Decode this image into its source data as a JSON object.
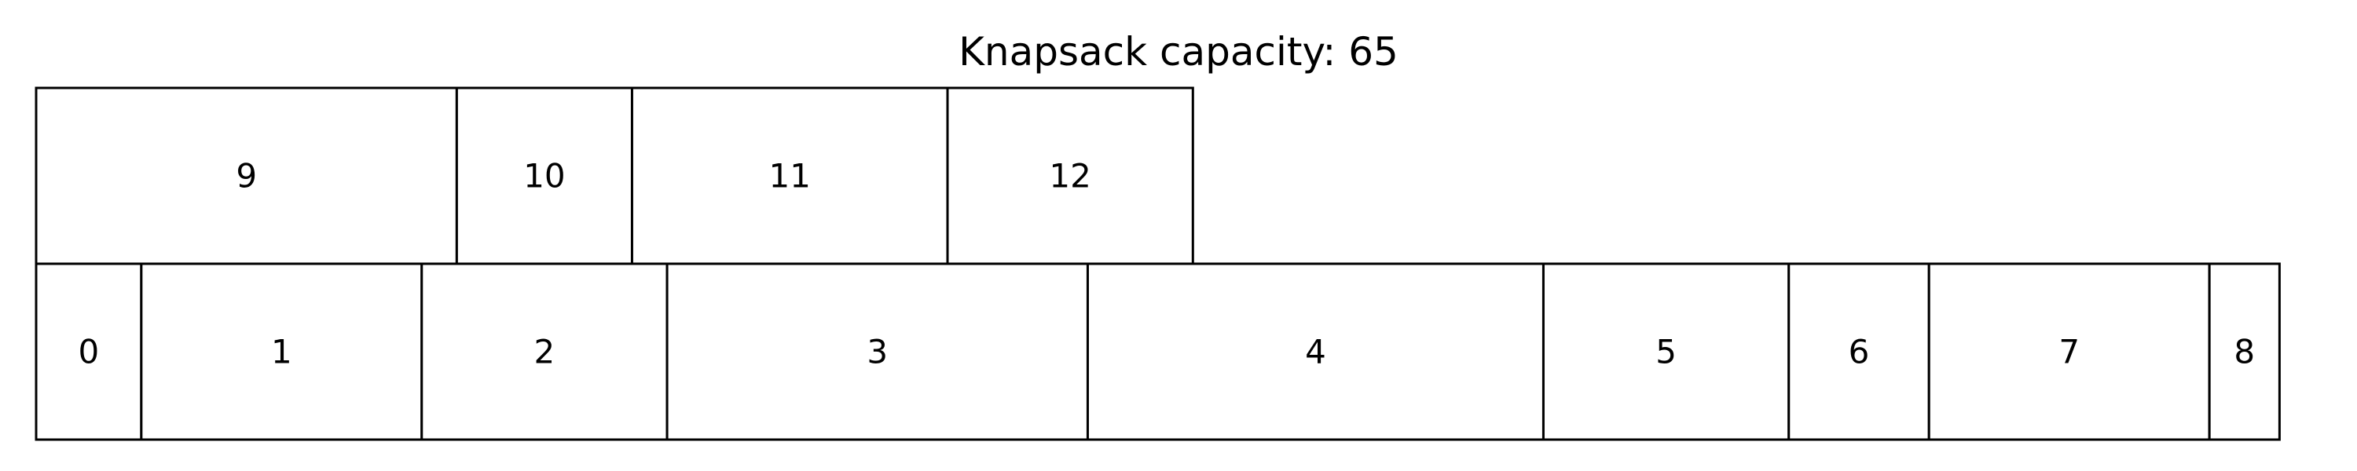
{
  "title": "Knapsack capacity: 65",
  "top_row": [
    {
      "label": "9",
      "size": 12
    },
    {
      "label": "10",
      "size": 5
    },
    {
      "label": "11",
      "size": 9
    },
    {
      "label": "12",
      "size": 7
    }
  ],
  "bottom_row": [
    {
      "label": "0",
      "size": 3
    },
    {
      "label": "1",
      "size": 8
    },
    {
      "label": "2",
      "size": 7
    },
    {
      "label": "3",
      "size": 12
    },
    {
      "label": "4",
      "size": 13
    },
    {
      "label": "5",
      "size": 7
    },
    {
      "label": "6",
      "size": 4
    },
    {
      "label": "7",
      "size": 8
    },
    {
      "label": "8",
      "size": 2
    }
  ]
}
